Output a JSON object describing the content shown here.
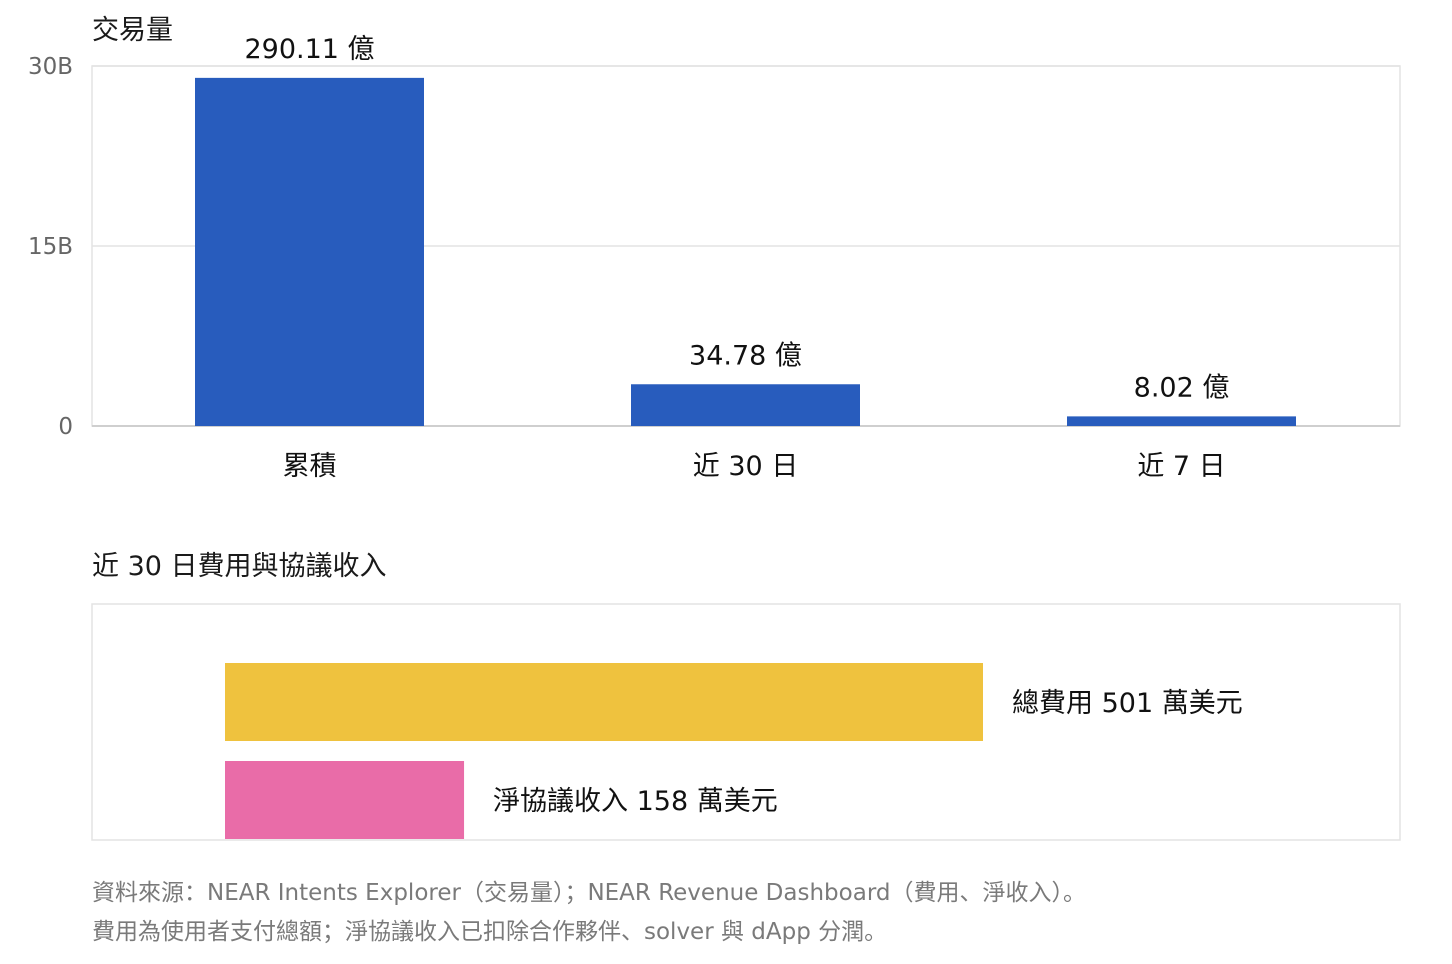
{
  "chart_data": [
    {
      "type": "bar",
      "title": "交易量",
      "categories": [
        "累積",
        "近 30 日",
        "近 7 日"
      ],
      "values": [
        29.011,
        3.478,
        0.802
      ],
      "value_unit": "B",
      "data_labels": [
        "290.11 億",
        "34.78 億",
        "8.02 億"
      ],
      "yticks": [
        0,
        15,
        30
      ],
      "ytick_labels": [
        "0",
        "15B",
        "30B"
      ],
      "ylim": [
        0,
        30
      ],
      "grid": true,
      "color": "#285cbd"
    },
    {
      "type": "bar",
      "orientation": "horizontal",
      "title": "近 30 日費用與協議收入",
      "categories": [
        "總費用",
        "淨協議收入"
      ],
      "values": [
        501,
        158
      ],
      "data_labels": [
        "總費用 501 萬美元",
        "淨協議收入 158 萬美元"
      ],
      "colors": [
        "#efc23e",
        "#e96ca8"
      ],
      "grid": false
    }
  ],
  "source_notes": [
    "資料來源：NEAR Intents Explorer（交易量）；NEAR Revenue Dashboard（費用、淨收入）。",
    "費用為使用者支付總額；淨協議收入已扣除合作夥伴、solver 與 dApp 分潤。"
  ]
}
